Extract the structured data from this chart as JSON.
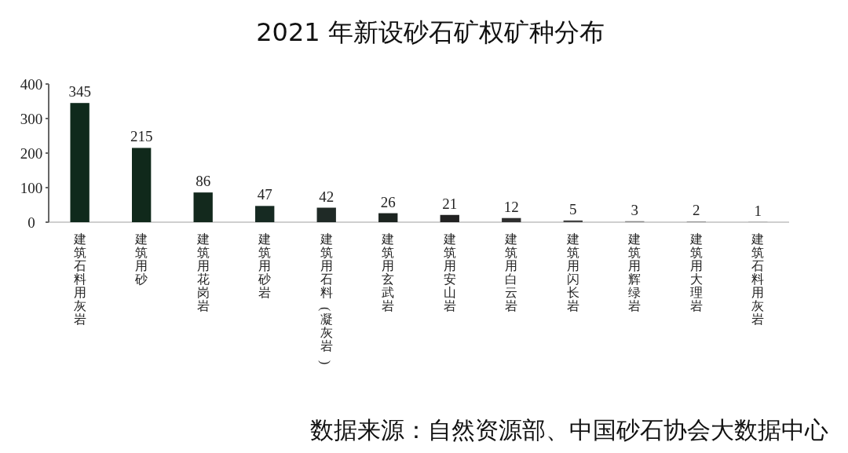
{
  "chart_data": {
    "type": "bar",
    "title": "2021 年新设砂石矿权矿种分布",
    "categories": [
      "建筑石料用灰岩",
      "建筑用砂",
      "建筑用花岗岩",
      "建筑用砂岩",
      "建筑用石料(凝灰岩)",
      "建筑用玄武岩",
      "建筑用安山岩",
      "建筑用白云岩",
      "建筑用闪长岩",
      "建筑用辉绿岩",
      "建筑用大理岩",
      "建筑石料用灰岩"
    ],
    "values": [
      345,
      215,
      86,
      47,
      42,
      26,
      21,
      12,
      5,
      3,
      2,
      1
    ],
    "colors": [
      "#0f2a1c",
      "#10291b",
      "#13291d",
      "#162a22",
      "#1f2a26",
      "#1c2420",
      "#222222",
      "#2e2e2e",
      "#444444",
      "#888888",
      "#8a8a8a",
      "#999999"
    ],
    "ylim": [
      0,
      400
    ],
    "yticks": [
      0,
      100,
      200,
      300,
      400
    ],
    "data_labels": true,
    "annotations": [
      "数据来源：自然资源部、中国砂石协会大数据中心"
    ]
  }
}
